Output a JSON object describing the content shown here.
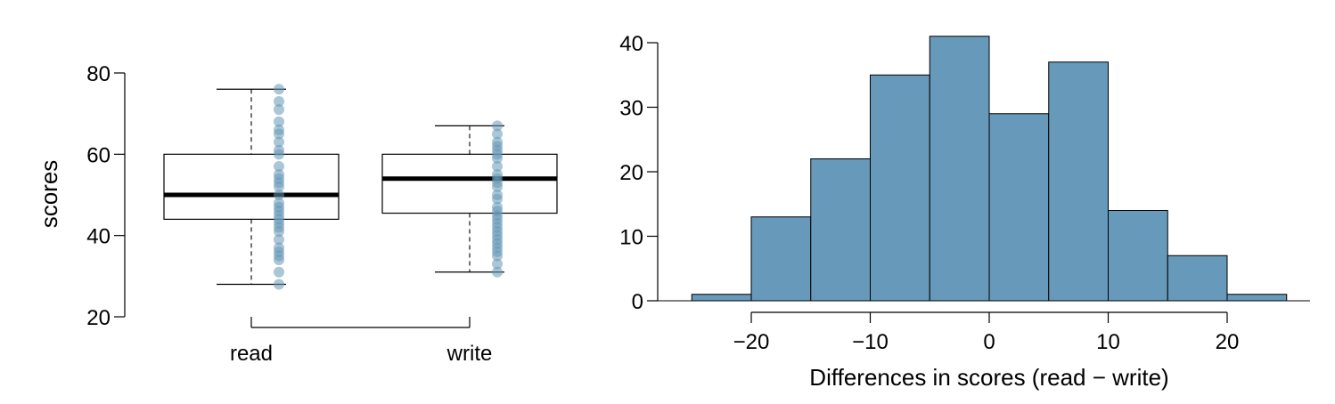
{
  "chart_data": [
    {
      "type": "box",
      "ylabel": "scores",
      "ylim": [
        20,
        80
      ],
      "yticks": [
        20,
        40,
        60,
        80
      ],
      "categories": [
        "read",
        "write"
      ],
      "boxes": [
        {
          "name": "read",
          "min": 28,
          "q1": 44,
          "median": 50,
          "q3": 60,
          "max": 76
        },
        {
          "name": "write",
          "min": 31,
          "q1": 45.5,
          "median": 54,
          "q3": 60,
          "max": 67
        }
      ],
      "points": [
        {
          "group": "read",
          "values": [
            28,
            31,
            34,
            35,
            36,
            37,
            39,
            41,
            42,
            43,
            44,
            45,
            46,
            47,
            48,
            50,
            52,
            53,
            54,
            55,
            57,
            60,
            61,
            63,
            65,
            66,
            68,
            71,
            73,
            76
          ]
        },
        {
          "group": "write",
          "values": [
            31,
            33,
            35,
            36,
            37,
            38,
            39,
            40,
            41,
            42,
            43,
            44,
            45,
            46,
            47,
            49,
            50,
            52,
            53,
            54,
            55,
            57,
            59,
            60,
            61,
            62,
            63,
            65,
            67
          ]
        }
      ],
      "point_color": "#6497b7"
    },
    {
      "type": "bar",
      "subtype": "histogram",
      "xlabel": "Differences in scores (read − write)",
      "bins": [
        -25,
        -20,
        -15,
        -10,
        -5,
        0,
        5,
        10,
        15,
        20,
        25
      ],
      "counts": [
        1,
        13,
        22,
        35,
        41,
        29,
        37,
        14,
        7,
        1
      ],
      "xticks": [
        -20,
        -10,
        0,
        10,
        20
      ],
      "xtick_labels": [
        "−20",
        "−10",
        "0",
        "10",
        "20"
      ],
      "yticks": [
        0,
        10,
        20,
        30,
        40
      ],
      "ylim": [
        0,
        41
      ],
      "bar_color": "#6699ba"
    }
  ]
}
